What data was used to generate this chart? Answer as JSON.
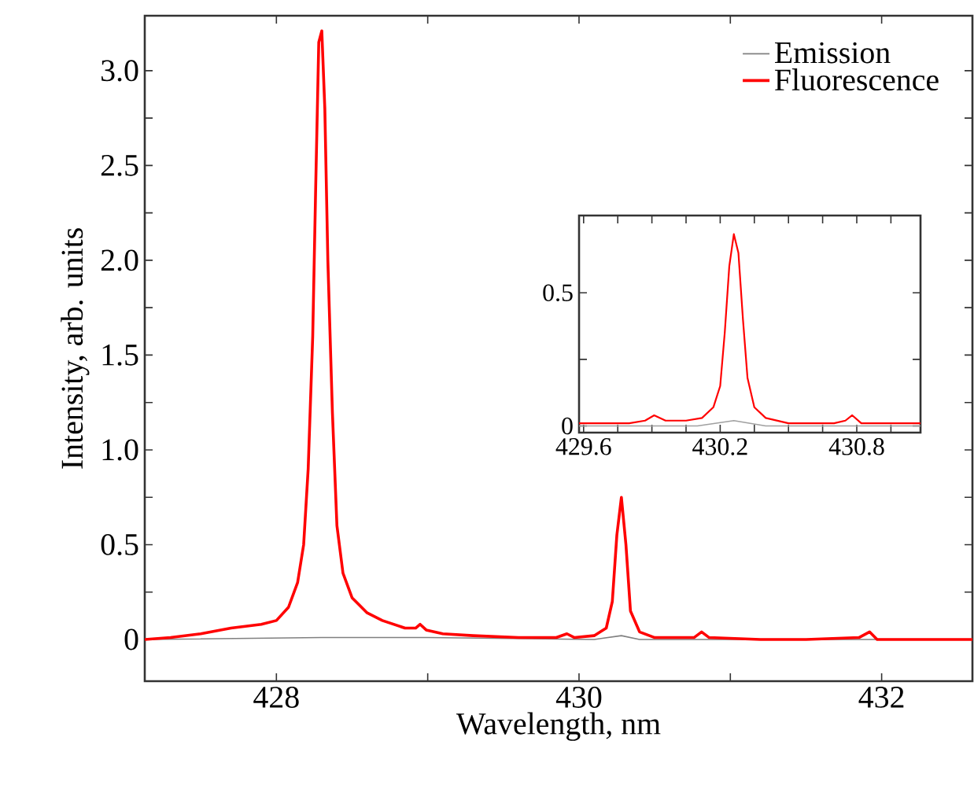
{
  "chart_data": [
    {
      "type": "line",
      "xlabel": "Wavelength, nm",
      "ylabel": "Intensity, arb. units",
      "xlim": [
        427.13,
        432.6
      ],
      "ylim": [
        -0.22,
        3.29
      ],
      "xticks": [
        428,
        {
          "value": 429,
          "label": null
        },
        430,
        {
          "value": 431,
          "label": null
        },
        432
      ],
      "yticks": [
        0,
        {
          "value": 0.25,
          "label": null
        },
        0.5,
        {
          "value": 0.75,
          "label": null
        },
        {
          "value": 1,
          "label": "1.0"
        },
        {
          "value": 1.25,
          "label": null
        },
        1.5,
        {
          "value": 1.75,
          "label": null
        },
        {
          "value": 2,
          "label": "2.0"
        },
        {
          "value": 2.25,
          "label": null
        },
        2.5,
        {
          "value": 2.75,
          "label": null
        },
        {
          "value": 3,
          "label": "3.0"
        }
      ],
      "legend": "top right",
      "series": [
        {
          "name": "Emission",
          "color": "#808080",
          "x": [
            427.13,
            428.3,
            429.0,
            430.1,
            430.28,
            430.4,
            432.6
          ],
          "values": [
            0.0,
            0.01,
            0.01,
            0.0,
            0.02,
            0.0,
            0.0
          ]
        },
        {
          "name": "Fluorescence",
          "color": "#ff0000",
          "x": [
            427.13,
            427.3,
            427.5,
            427.7,
            427.9,
            428.0,
            428.08,
            428.14,
            428.18,
            428.21,
            428.24,
            428.26,
            428.28,
            428.3,
            428.32,
            428.34,
            428.37,
            428.4,
            428.44,
            428.5,
            428.6,
            428.7,
            428.85,
            428.92,
            428.95,
            428.99,
            429.1,
            429.3,
            429.6,
            429.85,
            429.92,
            429.97,
            430.1,
            430.18,
            430.22,
            430.25,
            430.28,
            430.31,
            430.34,
            430.4,
            430.5,
            430.76,
            430.81,
            430.86,
            431.2,
            431.5,
            431.85,
            431.92,
            431.97,
            432.3,
            432.6
          ],
          "values": [
            0.0,
            0.01,
            0.03,
            0.06,
            0.08,
            0.1,
            0.17,
            0.3,
            0.5,
            0.9,
            1.6,
            2.4,
            3.15,
            3.21,
            2.8,
            2.0,
            1.2,
            0.6,
            0.35,
            0.22,
            0.14,
            0.1,
            0.06,
            0.06,
            0.08,
            0.05,
            0.03,
            0.02,
            0.01,
            0.01,
            0.03,
            0.01,
            0.02,
            0.06,
            0.2,
            0.55,
            0.75,
            0.5,
            0.15,
            0.04,
            0.01,
            0.01,
            0.04,
            0.01,
            0.0,
            0.0,
            0.01,
            0.04,
            0.0,
            0.0,
            0.0
          ]
        }
      ]
    },
    {
      "type": "line",
      "xlim": [
        429.58,
        431.08
      ],
      "ylim": [
        -0.025,
        0.79
      ],
      "xticks": [
        429.6,
        {
          "value": 429.75,
          "label": null
        },
        {
          "value": 429.9,
          "label": null
        },
        {
          "value": 430.05,
          "label": null
        },
        430.2,
        {
          "value": 430.35,
          "label": null
        },
        {
          "value": 430.5,
          "label": null
        },
        {
          "value": 430.65,
          "label": null
        },
        430.8,
        {
          "value": 430.95,
          "label": null
        }
      ],
      "yticks": [
        0,
        {
          "value": 0.25,
          "label": null
        },
        0.5
      ],
      "series": [
        {
          "color": "#a0a0a0",
          "x": [
            429.58,
            430.1,
            430.26,
            430.4,
            431.08
          ],
          "values": [
            0.0,
            0.0,
            0.02,
            0.0,
            0.0
          ]
        },
        {
          "color": "#ff0000",
          "x": [
            429.58,
            429.8,
            429.87,
            429.91,
            429.96,
            430.05,
            430.12,
            430.17,
            430.2,
            430.22,
            430.24,
            430.26,
            430.28,
            430.3,
            430.32,
            430.35,
            430.4,
            430.5,
            430.7,
            430.75,
            430.78,
            430.82,
            430.9,
            431.08
          ],
          "values": [
            0.01,
            0.01,
            0.02,
            0.04,
            0.02,
            0.02,
            0.03,
            0.07,
            0.15,
            0.35,
            0.6,
            0.72,
            0.65,
            0.4,
            0.18,
            0.07,
            0.03,
            0.01,
            0.01,
            0.02,
            0.04,
            0.01,
            0.01,
            0.01
          ]
        }
      ]
    }
  ]
}
